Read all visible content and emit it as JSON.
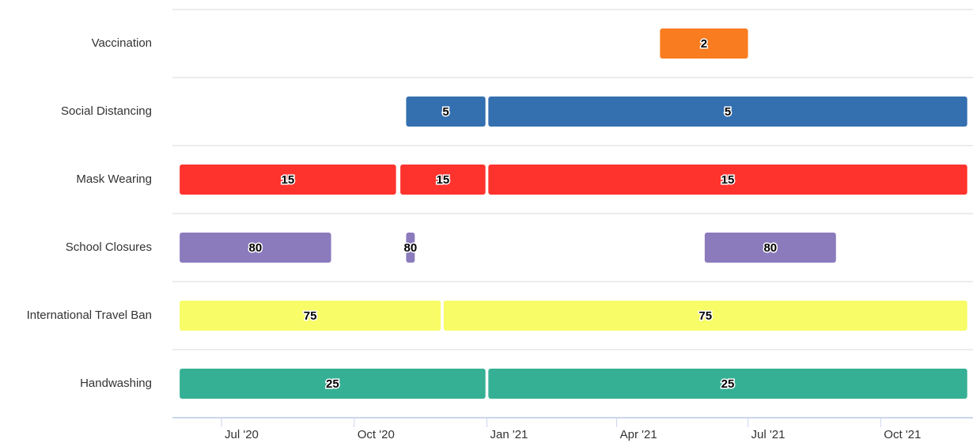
{
  "chart_data": {
    "type": "xrange",
    "xlim": [
      "2020-05-28",
      "2021-12-04"
    ],
    "xticks": [
      {
        "value": "2020-07-01",
        "label": "Jul '20"
      },
      {
        "value": "2020-10-01",
        "label": "Oct '20"
      },
      {
        "value": "2021-01-01",
        "label": "Jan '21"
      },
      {
        "value": "2021-04-01",
        "label": "Apr '21"
      },
      {
        "value": "2021-07-01",
        "label": "Jul '21"
      },
      {
        "value": "2021-10-01",
        "label": "Oct '21"
      }
    ],
    "rows": [
      {
        "name": "Vaccination",
        "color": "#f97c20",
        "value": 2,
        "segments": [
          {
            "start": "2021-05-01",
            "end": "2021-07-01"
          }
        ]
      },
      {
        "name": "Social Distancing",
        "color": "#3470b0",
        "value": 5,
        "segments": [
          {
            "start": "2020-11-06",
            "end": "2020-12-31"
          },
          {
            "start": "2021-01-02",
            "end": "2021-11-30"
          }
        ]
      },
      {
        "name": "Mask Wearing",
        "color": "#ff332d",
        "value": 15,
        "segments": [
          {
            "start": "2020-06-02",
            "end": "2020-10-30"
          },
          {
            "start": "2020-11-02",
            "end": "2020-12-31"
          },
          {
            "start": "2021-01-02",
            "end": "2021-11-30"
          }
        ]
      },
      {
        "name": "School Closures",
        "color": "#8b7bbd",
        "value": 80,
        "segments": [
          {
            "start": "2020-06-02",
            "end": "2020-09-15"
          },
          {
            "start": "2020-11-06",
            "end": "2020-11-12"
          },
          {
            "start": "2021-06-01",
            "end": "2021-08-31"
          }
        ]
      },
      {
        "name": "International Travel Ban",
        "color": "#f8fc66",
        "value": 75,
        "segments": [
          {
            "start": "2020-06-02",
            "end": "2020-11-30"
          },
          {
            "start": "2020-12-02",
            "end": "2021-11-30"
          }
        ]
      },
      {
        "name": "Handwashing",
        "color": "#36b095",
        "value": 25,
        "segments": [
          {
            "start": "2020-06-02",
            "end": "2020-12-31"
          },
          {
            "start": "2021-01-02",
            "end": "2021-11-30"
          }
        ]
      }
    ]
  }
}
